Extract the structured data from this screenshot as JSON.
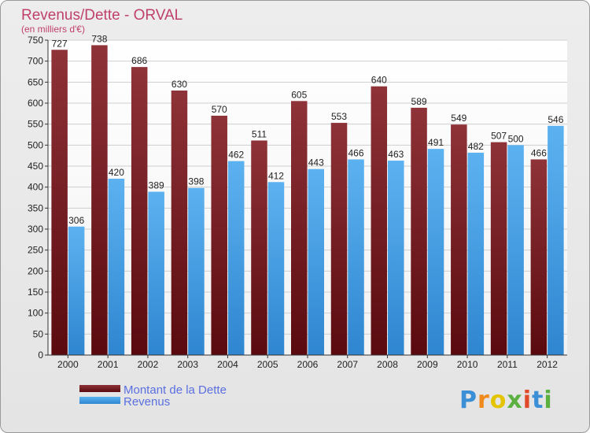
{
  "chart_data": {
    "type": "bar",
    "title": "Revenus/Dette - ORVAL",
    "subtitle": "(en milliers d'€)",
    "categories": [
      "2000",
      "2001",
      "2002",
      "2003",
      "2004",
      "2005",
      "2006",
      "2007",
      "2008",
      "2009",
      "2010",
      "2011",
      "2012"
    ],
    "series": [
      {
        "name": "Montant de la Dette",
        "color": "#7a2024",
        "values": [
          727,
          738,
          686,
          630,
          570,
          511,
          605,
          553,
          640,
          589,
          549,
          507,
          466
        ]
      },
      {
        "name": "Revenus",
        "color": "#4aa3e8",
        "values": [
          306,
          420,
          389,
          398,
          462,
          412,
          443,
          466,
          463,
          491,
          482,
          500,
          546
        ]
      }
    ],
    "ylim": [
      0,
      750
    ],
    "yticks": [
      0,
      50,
      100,
      150,
      200,
      250,
      300,
      350,
      400,
      450,
      500,
      550,
      600,
      650,
      700,
      750
    ],
    "grid": true,
    "legend": "bottom-left"
  },
  "logo": {
    "letters": [
      {
        "ch": "P",
        "color": "#3b8fd6"
      },
      {
        "ch": "r",
        "color": "#f08a1c"
      },
      {
        "ch": "o",
        "color": "#e4c400"
      },
      {
        "ch": "x",
        "color": "#5bb040"
      },
      {
        "ch": "i",
        "color": "#e04a2a"
      },
      {
        "ch": "t",
        "color": "#3b8fd6"
      },
      {
        "ch": "i",
        "color": "#5bb040"
      }
    ]
  }
}
